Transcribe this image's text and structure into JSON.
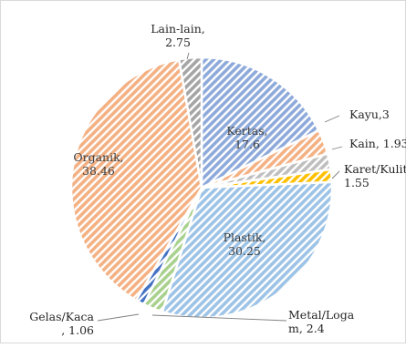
{
  "chart_data": {
    "type": "pie",
    "title": "",
    "slices": [
      {
        "name": "Kertas",
        "value": 17.6,
        "color": "#8eaadb",
        "label_lines": [
          "Kertas,",
          "17.6"
        ],
        "label_inside": true
      },
      {
        "name": "Kayu",
        "value": 3,
        "color": "#f4b183",
        "label_lines": [
          "Kayu,3"
        ],
        "label_inside": false
      },
      {
        "name": "Kain",
        "value": 1.93,
        "color": "#bfbfbf",
        "label_lines": [
          "Kain, 1.93"
        ],
        "label_inside": false
      },
      {
        "name": "Karet/Kulit",
        "value": 1.55,
        "color": "#ffc000",
        "label_lines": [
          "Karet/Kulit,",
          "1.55"
        ],
        "label_inside": false
      },
      {
        "name": "Plastik",
        "value": 30.25,
        "color": "#9dc3e6",
        "label_lines": [
          "Plastik,",
          "30.25"
        ],
        "label_inside": true
      },
      {
        "name": "Metal/Logam",
        "value": 2.4,
        "color": "#a9d18e",
        "label_lines": [
          "Metal/Loga",
          "m, 2.4"
        ],
        "label_inside": false
      },
      {
        "name": "Gelas/Kaca",
        "value": 1.06,
        "color": "#4472c4",
        "label_lines": [
          "Gelas/Kaca",
          ", 1.06"
        ],
        "label_inside": false
      },
      {
        "name": "Organik",
        "value": 38.46,
        "color": "#f4b183",
        "label_lines": [
          "Organik,",
          "38.46"
        ],
        "label_inside": true
      },
      {
        "name": "Lain-lain",
        "value": 2.75,
        "color": "#a5a5a5",
        "label_lines": [
          "Lain-lain,",
          "2.75"
        ],
        "label_inside": false
      }
    ],
    "start_angle_deg": 0,
    "direction": "clockwise",
    "hatch": "diagonal-stripes",
    "legend": "none"
  }
}
